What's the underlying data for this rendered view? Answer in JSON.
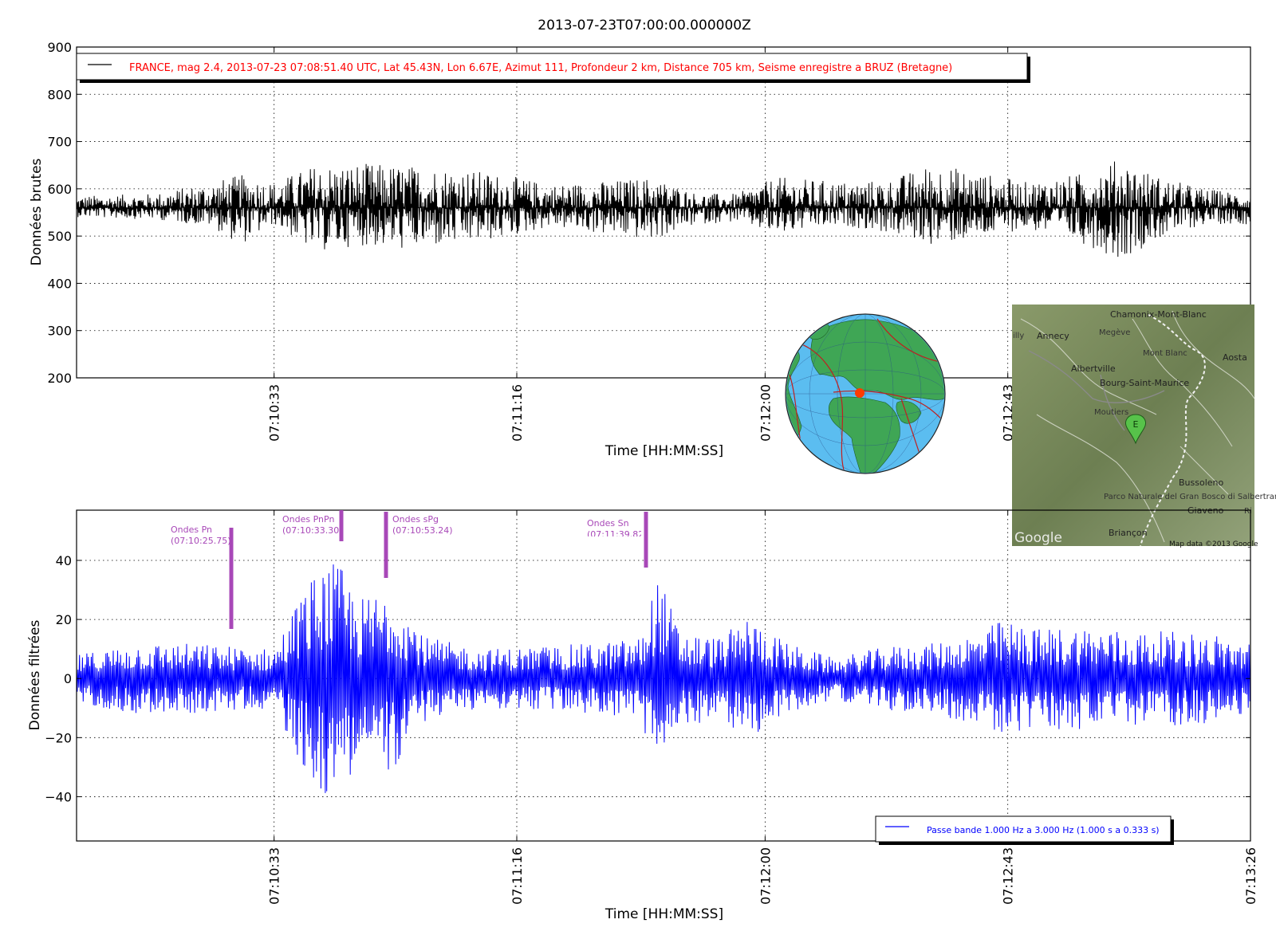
{
  "page_title": "2013-07-23T07:00:00.000000Z",
  "colors": {
    "raw": "#000000",
    "filtered": "#0000ff",
    "legend_raw_text": "#ff0000",
    "legend_filtered_text": "#0000ff",
    "phase": "#a848b8"
  },
  "top_legend": "FRANCE, mag 2.4, 2013-07-23 07:08:51.40 UTC, Lat 45.43N, Lon 6.67E, Azimut 111, Profondeur 2 km, Distance 705 km, Seisme enregistre a BRUZ (Bretagne)",
  "bottom_legend": "Passe bande 1.000 Hz a 3.000 Hz (1.000 s a 0.333 s)",
  "phases": [
    {
      "name": "Ondes Pn",
      "time": "(07:10:25.75)"
    },
    {
      "name": "Ondes PnPn",
      "time": "(07:10:33.30)"
    },
    {
      "name": "Ondes sPg",
      "time": "(07:10:53.24)"
    },
    {
      "name": "Ondes Sn",
      "time": "(07:11:39.82)"
    }
  ],
  "map_inset": {
    "places": [
      "Chamonix-Mont-Blanc",
      "Annecy",
      "Megève",
      "Mont Blanc",
      "Aosta",
      "Albertville",
      "Bourg-Saint-Maurice",
      "Moutiers",
      "Bussoleno",
      "Parco Naturale del Gran Bosco di Salbertrand",
      "Giaveno",
      "Briançon",
      "Google",
      "Map data ©2013 Google",
      "illy",
      "Ri"
    ],
    "marker": "E"
  },
  "chart_data": [
    {
      "type": "line",
      "title": "2013-07-23T07:00:00.000000Z",
      "xlabel": "Time [HH:MM:SS]",
      "ylabel": "Données brutes",
      "x_ticks": [
        "07:10:33",
        "07:11:16",
        "07:12:00",
        "07:12:43"
      ],
      "xlim": [
        "07:09:58",
        "07:13:26"
      ],
      "ylim": [
        200,
        900
      ],
      "y_ticks": [
        200,
        300,
        400,
        500,
        600,
        700,
        800,
        900
      ],
      "grid": true,
      "legend_position": "top-left",
      "series": [
        {
          "name": "FRANCE, mag 2.4, 2013-07-23 07:08:51.40 UTC, Lat 45.43N, Lon 6.67E, Azimut 111, Profondeur 2 km, Distance 705 km, Seisme enregistre a BRUZ (Bretagne)",
          "baseline": 560,
          "envelope_times": [
            "07:09:58",
            "07:10:12",
            "07:10:22",
            "07:10:27",
            "07:10:33",
            "07:10:40",
            "07:10:48",
            "07:10:56",
            "07:11:05",
            "07:11:14",
            "07:11:22",
            "07:11:30",
            "07:11:40",
            "07:11:48",
            "07:11:55",
            "07:12:02",
            "07:12:08",
            "07:12:15",
            "07:12:22",
            "07:12:30",
            "07:12:38",
            "07:12:46",
            "07:12:55",
            "07:13:03",
            "07:13:10",
            "07:13:18",
            "07:13:26"
          ],
          "envelope_max": [
            585,
            590,
            615,
            630,
            615,
            650,
            655,
            650,
            645,
            630,
            610,
            615,
            625,
            590,
            590,
            625,
            620,
            615,
            620,
            655,
            635,
            615,
            630,
            665,
            625,
            600,
            590
          ],
          "envelope_min": [
            540,
            535,
            520,
            480,
            525,
            465,
            480,
            470,
            480,
            495,
            520,
            505,
            490,
            525,
            530,
            500,
            515,
            520,
            505,
            480,
            495,
            515,
            490,
            450,
            495,
            525,
            525
          ]
        }
      ]
    },
    {
      "type": "line",
      "xlabel": "Time [HH:MM:SS]",
      "ylabel": "Données filtrées",
      "x_ticks": [
        "07:10:33",
        "07:11:16",
        "07:12:00",
        "07:12:43",
        "07:13:26"
      ],
      "xlim": [
        "07:09:58",
        "07:13:26"
      ],
      "ylim": [
        -55,
        57
      ],
      "y_ticks": [
        -40,
        -20,
        0,
        20,
        40
      ],
      "grid": true,
      "legend_position": "bottom-right",
      "series": [
        {
          "name": "Passe bande 1.000 Hz a 3.000 Hz (1.000 s a 0.333 s)",
          "envelope_times": [
            "07:09:58",
            "07:10:08",
            "07:10:18",
            "07:10:26",
            "07:10:33",
            "07:10:38",
            "07:10:42",
            "07:10:45",
            "07:10:48",
            "07:10:54",
            "07:11:00",
            "07:11:10",
            "07:11:20",
            "07:11:30",
            "07:11:38",
            "07:11:41",
            "07:11:45",
            "07:11:52",
            "07:11:57",
            "07:12:04",
            "07:12:12",
            "07:12:22",
            "07:12:30",
            "07:12:38",
            "07:12:42",
            "07:12:48",
            "07:12:56",
            "07:13:05",
            "07:13:12",
            "07:13:20",
            "07:13:26"
          ],
          "envelope_amp": [
            8,
            12,
            12,
            11,
            10,
            30,
            40,
            38,
            27,
            32,
            14,
            10,
            11,
            12,
            14,
            36,
            16,
            14,
            21,
            12,
            7,
            11,
            12,
            16,
            20,
            17,
            18,
            16,
            16,
            15,
            12
          ]
        }
      ]
    }
  ]
}
